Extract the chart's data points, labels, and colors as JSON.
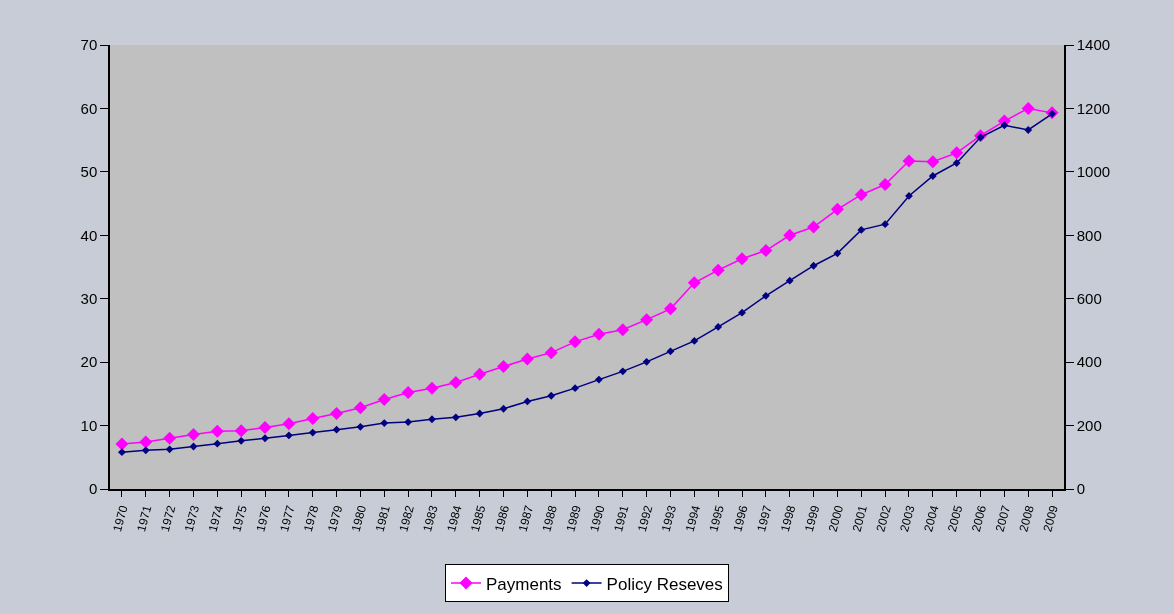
{
  "chart_data": {
    "type": "line",
    "categories": [
      "1970",
      "1971",
      "1972",
      "1973",
      "1974",
      "1975",
      "1976",
      "1977",
      "1978",
      "1979",
      "1980",
      "1981",
      "1982",
      "1983",
      "1984",
      "1985",
      "1986",
      "1987",
      "1988",
      "1989",
      "1990",
      "1991",
      "1992",
      "1993",
      "1994",
      "1995",
      "1996",
      "1997",
      "1998",
      "1999",
      "2000",
      "2001",
      "2002",
      "2003",
      "2004",
      "2005",
      "2006",
      "2007",
      "2008",
      "2009"
    ],
    "series": [
      {
        "name": "Payments",
        "color": "#ff00ff",
        "values": [
          7.1,
          7.4,
          8.0,
          8.6,
          9.1,
          9.2,
          9.7,
          10.3,
          11.1,
          11.9,
          12.8,
          14.1,
          15.2,
          15.9,
          16.8,
          18.1,
          19.3,
          20.5,
          21.5,
          23.2,
          24.4,
          25.1,
          26.7,
          28.4,
          32.5,
          34.5,
          36.3,
          37.6,
          40.0,
          41.3,
          44.1,
          46.4,
          48.0,
          51.7,
          51.6,
          53.0,
          55.7,
          58.0,
          60.0,
          59.3
        ]
      },
      {
        "name": "Policy Reseves",
        "color": "#000080",
        "axis": "y2",
        "values": [
          116,
          122,
          125,
          134,
          143,
          152,
          160,
          169,
          178,
          187,
          196,
          208,
          211,
          220,
          226,
          238,
          253,
          276,
          294,
          318,
          345,
          371,
          401,
          434,
          467,
          511,
          556,
          609,
          657,
          704,
          743,
          817,
          835,
          924,
          987,
          1028,
          1109,
          1147,
          1132,
          1183
        ]
      }
    ],
    "ylim": [
      0,
      70
    ],
    "yticks": [
      0,
      10,
      20,
      30,
      40,
      50,
      60,
      70
    ],
    "y2lim": [
      0,
      1400
    ],
    "y2ticks": [
      0,
      200,
      400,
      600,
      800,
      1000,
      1200,
      1400
    ],
    "grid": false,
    "legend": "bottom",
    "marker": "diamond",
    "line_style": "solid"
  }
}
